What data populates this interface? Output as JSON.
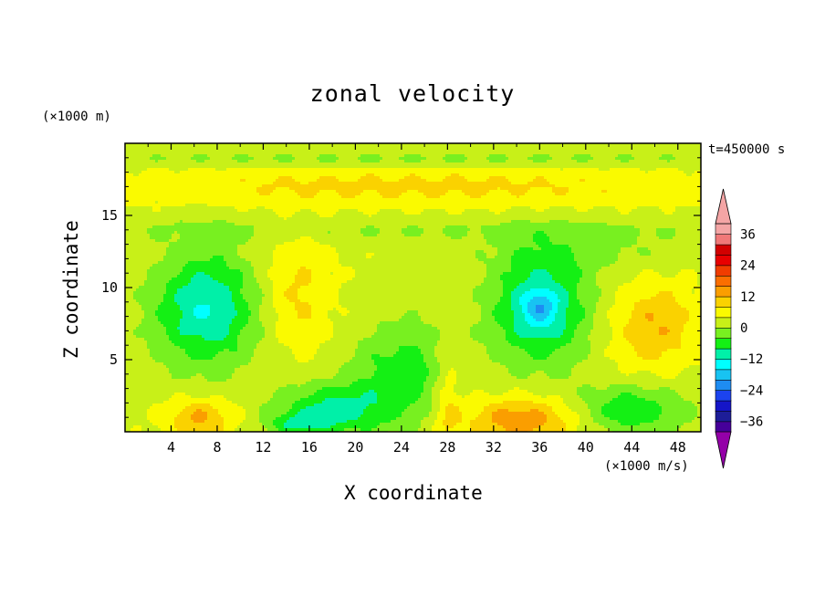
{
  "chart_data": {
    "type": "heatmap",
    "title": "zonal velocity",
    "xlabel": "X coordinate",
    "ylabel": "Z coordinate",
    "xunit": "(×1000 m/s)",
    "yunit": "(×1000 m)",
    "time_label": "t=450000 s",
    "xlim": [
      0,
      50
    ],
    "ylim": [
      0,
      20
    ],
    "x_ticks": [
      "4",
      "8",
      "12",
      "16",
      "20",
      "24",
      "28",
      "32",
      "36",
      "40",
      "44",
      "48"
    ],
    "x_tick_values": [
      4,
      8,
      12,
      16,
      20,
      24,
      28,
      32,
      36,
      40,
      44,
      48
    ],
    "y_ticks": [
      "5",
      "10",
      "15"
    ],
    "y_tick_values": [
      5,
      10,
      15
    ],
    "colorbar": {
      "levels": [
        -40,
        -36,
        -32,
        -28,
        -24,
        -20,
        -16,
        -12,
        -8,
        -4,
        0,
        4,
        8,
        12,
        16,
        20,
        24,
        28,
        32,
        36,
        40
      ],
      "tick_labels": [
        "36",
        "24",
        "12",
        "0",
        "−12",
        "−24",
        "−36"
      ],
      "tick_values": [
        36,
        24,
        12,
        0,
        -12,
        -24,
        -36
      ],
      "under_color": "#9400a8",
      "over_color": "#f4a5a5",
      "colors": [
        "#46009a",
        "#1d1d98",
        "#1515c8",
        "#1c43ee",
        "#1e8cf2",
        "#18c3f2",
        "#00ffff",
        "#00f0a8",
        "#14f014",
        "#78f020",
        "#c8f018",
        "#fafa00",
        "#fad200",
        "#fa9e00",
        "#fa6e00",
        "#f03c00",
        "#e80000",
        "#d20000",
        "#f07878",
        "#f4a5a5"
      ],
      "extend": "both"
    },
    "field_description_blobs": [
      {
        "x": 7,
        "z": 8.5,
        "v": -10
      },
      {
        "x": 36,
        "z": 8.7,
        "v": -18
      },
      {
        "x": 46,
        "z": 7.2,
        "v": 8
      },
      {
        "x": 15,
        "z": 0.6,
        "v": -16
      },
      {
        "x": 6.5,
        "z": 1.0,
        "v": 11
      },
      {
        "x": 34.5,
        "z": 0.6,
        "v": 12
      },
      {
        "x": 14.5,
        "z": 9.5,
        "v": 6
      },
      {
        "x": 26,
        "z": 16.5,
        "v": 9
      },
      {
        "x": 24,
        "z": 4.5,
        "v": -6
      }
    ]
  }
}
